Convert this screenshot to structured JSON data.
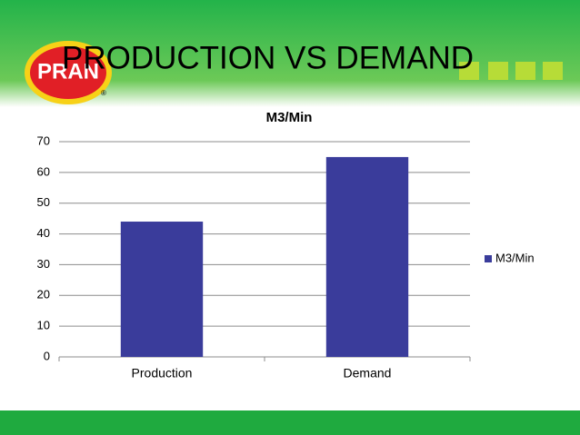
{
  "slide": {
    "title": "PRODUCTION VS DEMAND",
    "logo": "PRAN",
    "logo_mark": "®"
  },
  "chart_data": {
    "type": "bar",
    "title": "M3/Min",
    "categories": [
      "Production",
      "Demand"
    ],
    "series": [
      {
        "name": "M3/Min",
        "color": "#3a3c9b",
        "values": [
          44,
          65
        ]
      }
    ],
    "ylim": [
      0,
      70
    ],
    "yticks": [
      0,
      10,
      20,
      30,
      40,
      50,
      60,
      70
    ],
    "grid": true,
    "legend": "right"
  }
}
